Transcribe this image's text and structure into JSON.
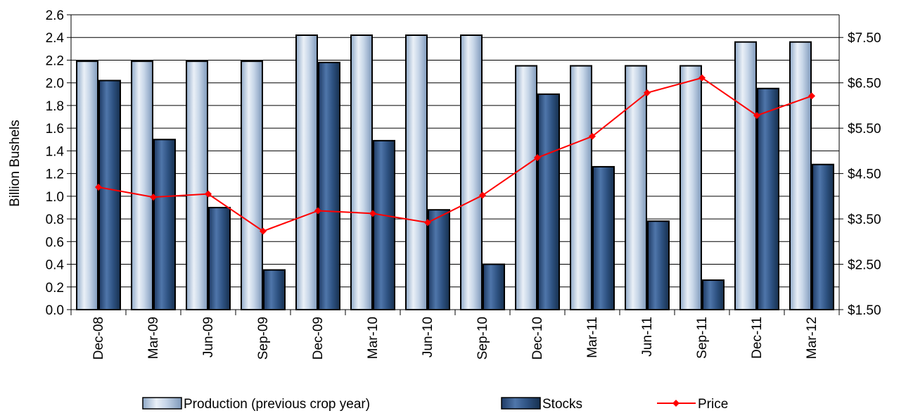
{
  "chart_data": {
    "type": "bar",
    "categories": [
      "Dec-08",
      "Mar-09",
      "Jun-09",
      "Sep-09",
      "Dec-09",
      "Mar-10",
      "Jun-10",
      "Sep-10",
      "Dec-10",
      "Mar-11",
      "Jun-11",
      "Sep-11",
      "Dec-11",
      "Mar-12"
    ],
    "series": [
      {
        "name": "Production (previous crop year)",
        "type": "bar",
        "axis": "left",
        "color": "#B8CCE4",
        "values": [
          2.19,
          2.19,
          2.19,
          2.19,
          2.42,
          2.42,
          2.42,
          2.42,
          2.15,
          2.15,
          2.15,
          2.15,
          2.36,
          2.36
        ]
      },
      {
        "name": "Stocks",
        "type": "bar",
        "axis": "left",
        "color": "#2F5383",
        "values": [
          2.02,
          1.5,
          0.9,
          0.35,
          2.18,
          1.49,
          0.88,
          0.4,
          1.9,
          1.26,
          0.78,
          0.26,
          1.95,
          1.28
        ]
      },
      {
        "name": "Price",
        "type": "line",
        "axis": "right",
        "color": "#FF0000",
        "values": [
          4.2,
          3.98,
          4.05,
          3.23,
          3.68,
          3.62,
          3.42,
          4.02,
          4.85,
          5.32,
          6.28,
          6.61,
          5.78,
          6.21
        ]
      }
    ],
    "ylabel": "Billion Bushels",
    "ylim": [
      0,
      2.6
    ],
    "yticks": [
      "0.0",
      "0.2",
      "0.4",
      "0.6",
      "0.8",
      "1.0",
      "1.2",
      "1.4",
      "1.6",
      "1.8",
      "2.0",
      "2.2",
      "2.4",
      "2.6"
    ],
    "y2lim": [
      1.5,
      8.0
    ],
    "y2ticks": [
      "$1.50",
      "$2.50",
      "$3.50",
      "$4.50",
      "$5.50",
      "$6.50",
      "$7.50"
    ],
    "grid": true,
    "legend_position": "bottom"
  }
}
